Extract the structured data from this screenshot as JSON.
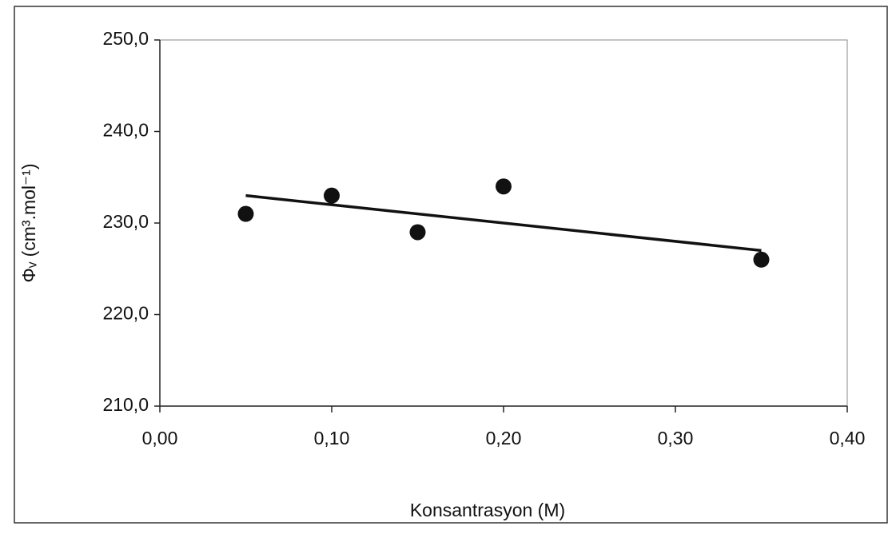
{
  "chart_data": {
    "type": "scatter",
    "x_label": "Konsantrasyon (M)",
    "y_label": "Φᵥ (cm³.mol⁻¹)",
    "x": [
      0.05,
      0.1,
      0.15,
      0.2,
      0.35
    ],
    "values": [
      231,
      233,
      229,
      234,
      226
    ],
    "color": "#111111",
    "trendline": {
      "x": [
        0.05,
        0.35
      ],
      "values": [
        233,
        227
      ],
      "color": "#111111"
    },
    "xlim": [
      0,
      0.4
    ],
    "xticks": [
      {
        "value": 0,
        "label": "0,00"
      },
      {
        "value": 0.1,
        "label": "0,10"
      },
      {
        "value": 0.2,
        "label": "0,20"
      },
      {
        "value": 0.3,
        "label": "0,30"
      },
      {
        "value": 0.4,
        "label": "0,40"
      }
    ],
    "ylim": [
      210,
      250
    ],
    "yticks": [
      {
        "value": 210,
        "label": "210,0"
      },
      {
        "value": 220,
        "label": "220,0"
      },
      {
        "value": 230,
        "label": "230,0"
      },
      {
        "value": 240,
        "label": "240,0"
      },
      {
        "value": 250,
        "label": "250,0"
      }
    ],
    "grid": false
  }
}
